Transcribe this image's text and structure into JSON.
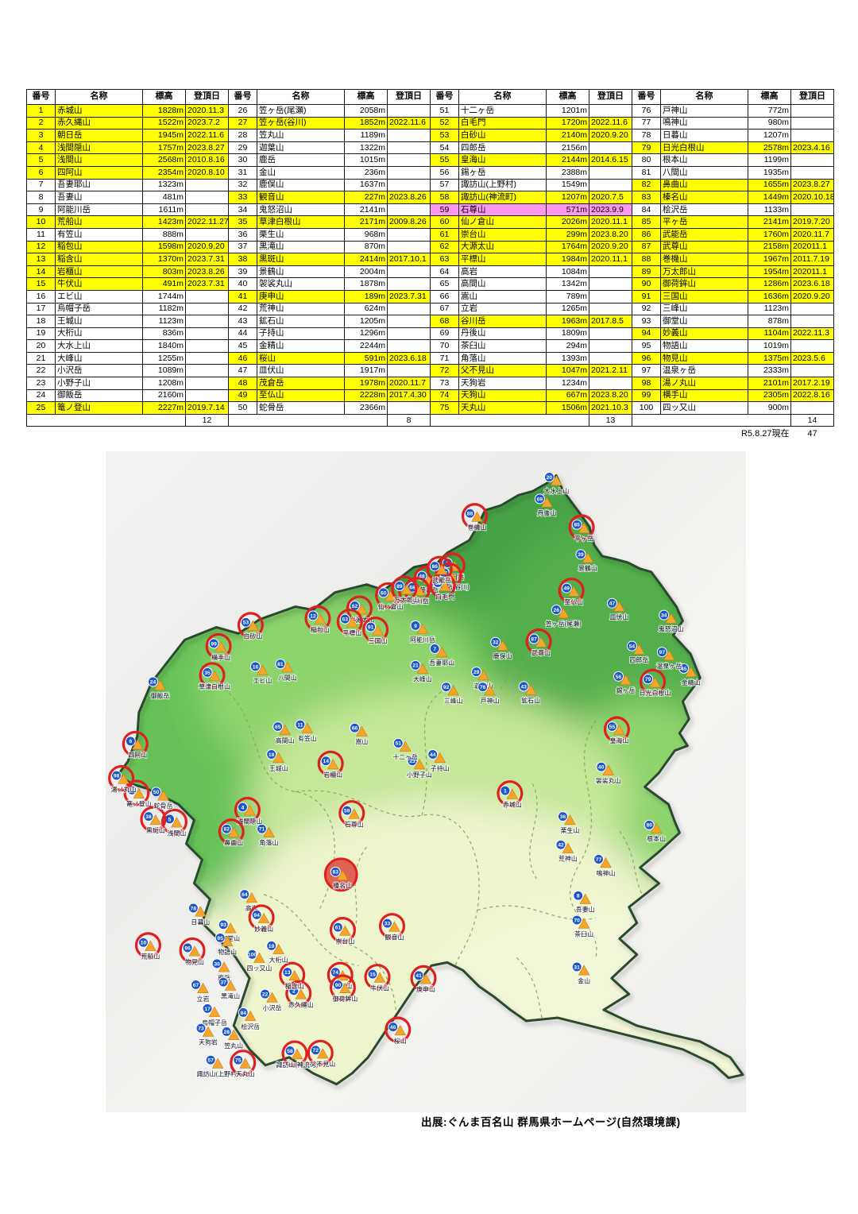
{
  "table": {
    "headers": [
      "番号",
      "名称",
      "標高",
      "登頂日"
    ],
    "groups": [
      {
        "rows": [
          {
            "n": "1",
            "name": "赤城山",
            "elev": "1828m",
            "date": "2020.11.3"
          },
          {
            "n": "2",
            "name": "赤久縄山",
            "elev": "1522m",
            "date": "2023.7.2"
          },
          {
            "n": "3",
            "name": "朝日岳",
            "elev": "1945m",
            "date": "2022.11.6"
          },
          {
            "n": "4",
            "name": "浅間隠山",
            "elev": "1757m",
            "date": "2023.8.27"
          },
          {
            "n": "5",
            "name": "浅間山",
            "elev": "2568m",
            "date": "2010.8.16"
          },
          {
            "n": "6",
            "name": "四阿山",
            "elev": "2354m",
            "date": "2020.8.10"
          },
          {
            "n": "7",
            "name": "吾妻耶山",
            "elev": "1323m",
            "date": ""
          },
          {
            "n": "8",
            "name": "吾妻山",
            "elev": "481m",
            "date": ""
          },
          {
            "n": "9",
            "name": "阿能川岳",
            "elev": "1611m",
            "date": ""
          },
          {
            "n": "10",
            "name": "荒船山",
            "elev": "1423m",
            "date": "2022.11.27"
          },
          {
            "n": "11",
            "name": "有笠山",
            "elev": "888m",
            "date": ""
          },
          {
            "n": "12",
            "name": "稲包山",
            "elev": "1598m",
            "date": "2020.9.20"
          },
          {
            "n": "13",
            "name": "稲含山",
            "elev": "1370m",
            "date": "2023.7.31"
          },
          {
            "n": "14",
            "name": "岩櫃山",
            "elev": "803m",
            "date": "2023.8.26"
          },
          {
            "n": "15",
            "name": "牛伏山",
            "elev": "491m",
            "date": "2023.7.31"
          },
          {
            "n": "16",
            "name": "エビ山",
            "elev": "1744m",
            "date": ""
          },
          {
            "n": "17",
            "name": "烏帽子岳",
            "elev": "1182m",
            "date": ""
          },
          {
            "n": "18",
            "name": "王城山",
            "elev": "1123m",
            "date": ""
          },
          {
            "n": "19",
            "name": "大桁山",
            "elev": "836m",
            "date": ""
          },
          {
            "n": "20",
            "name": "大水上山",
            "elev": "1840m",
            "date": ""
          },
          {
            "n": "21",
            "name": "大峰山",
            "elev": "1255m",
            "date": ""
          },
          {
            "n": "22",
            "name": "小沢岳",
            "elev": "1089m",
            "date": ""
          },
          {
            "n": "23",
            "name": "小野子山",
            "elev": "1208m",
            "date": ""
          },
          {
            "n": "24",
            "name": "御飯岳",
            "elev": "2160m",
            "date": ""
          },
          {
            "n": "25",
            "name": "篭ノ登山",
            "elev": "2227m",
            "date": "2019.7.14"
          }
        ],
        "subtotal": "12"
      },
      {
        "rows": [
          {
            "n": "26",
            "name": "笠ヶ岳(尾瀬)",
            "elev": "2058m",
            "date": ""
          },
          {
            "n": "27",
            "name": "笠ヶ岳(谷川)",
            "elev": "1852m",
            "date": "2022.11.6"
          },
          {
            "n": "28",
            "name": "笠丸山",
            "elev": "1189m",
            "date": ""
          },
          {
            "n": "29",
            "name": "迦葉山",
            "elev": "1322m",
            "date": ""
          },
          {
            "n": "30",
            "name": "鹿岳",
            "elev": "1015m",
            "date": ""
          },
          {
            "n": "31",
            "name": "金山",
            "elev": "236m",
            "date": ""
          },
          {
            "n": "32",
            "name": "鹿俣山",
            "elev": "1637m",
            "date": ""
          },
          {
            "n": "33",
            "name": "観音山",
            "elev": "227m",
            "date": "2023.8.26"
          },
          {
            "n": "34",
            "name": "鬼怒沼山",
            "elev": "2141m",
            "date": ""
          },
          {
            "n": "35",
            "name": "草津白根山",
            "elev": "2171m",
            "date": "2009.8.26"
          },
          {
            "n": "36",
            "name": "栗生山",
            "elev": "968m",
            "date": ""
          },
          {
            "n": "37",
            "name": "黒滝山",
            "elev": "870m",
            "date": ""
          },
          {
            "n": "38",
            "name": "黒斑山",
            "elev": "2414m",
            "date": "2017.10.1"
          },
          {
            "n": "39",
            "name": "景鶴山",
            "elev": "2004m",
            "date": ""
          },
          {
            "n": "40",
            "name": "袈裟丸山",
            "elev": "1878m",
            "date": ""
          },
          {
            "n": "41",
            "name": "庚申山",
            "elev": "189m",
            "date": "2023.7.31"
          },
          {
            "n": "42",
            "name": "荒神山",
            "elev": "624m",
            "date": ""
          },
          {
            "n": "43",
            "name": "鉱石山",
            "elev": "1205m",
            "date": ""
          },
          {
            "n": "44",
            "name": "子持山",
            "elev": "1296m",
            "date": ""
          },
          {
            "n": "45",
            "name": "金精山",
            "elev": "2244m",
            "date": ""
          },
          {
            "n": "46",
            "name": "桜山",
            "elev": "591m",
            "date": "2023.6.18"
          },
          {
            "n": "47",
            "name": "皿伏山",
            "elev": "1917m",
            "date": ""
          },
          {
            "n": "48",
            "name": "茂倉岳",
            "elev": "1978m",
            "date": "2020.11.7"
          },
          {
            "n": "49",
            "name": "至仏山",
            "elev": "2228m",
            "date": "2017.4.30"
          },
          {
            "n": "50",
            "name": "蛇骨岳",
            "elev": "2366m",
            "date": ""
          }
        ],
        "subtotal": "8"
      },
      {
        "rows": [
          {
            "n": "51",
            "name": "十二ヶ岳",
            "elev": "1201m",
            "date": ""
          },
          {
            "n": "52",
            "name": "白毛門",
            "elev": "1720m",
            "date": "2022.11.6"
          },
          {
            "n": "53",
            "name": "白砂山",
            "elev": "2140m",
            "date": "2020.9.20"
          },
          {
            "n": "54",
            "name": "四郎岳",
            "elev": "2156m",
            "date": ""
          },
          {
            "n": "55",
            "name": "皇海山",
            "elev": "2144m",
            "date": "2014.6.15"
          },
          {
            "n": "56",
            "name": "錫ヶ岳",
            "elev": "2388m",
            "date": ""
          },
          {
            "n": "57",
            "name": "諏訪山(上野村)",
            "elev": "1549m",
            "date": ""
          },
          {
            "n": "58",
            "name": "諏訪山(神流町)",
            "elev": "1207m",
            "date": "2020.7.5"
          },
          {
            "n": "59",
            "name": "石尊山",
            "elev": "571m",
            "date": "2023.9.9"
          },
          {
            "n": "60",
            "name": "仙ノ倉山",
            "elev": "2026m",
            "date": "2020.11.1"
          },
          {
            "n": "61",
            "name": "崇台山",
            "elev": "299m",
            "date": "2023.8.20"
          },
          {
            "n": "62",
            "name": "大源太山",
            "elev": "1764m",
            "date": "2020.9.20"
          },
          {
            "n": "63",
            "name": "平標山",
            "elev": "1984m",
            "date": "2020.11.1"
          },
          {
            "n": "64",
            "name": "高岩",
            "elev": "1084m",
            "date": ""
          },
          {
            "n": "65",
            "name": "高間山",
            "elev": "1342m",
            "date": ""
          },
          {
            "n": "66",
            "name": "嵩山",
            "elev": "789m",
            "date": ""
          },
          {
            "n": "67",
            "name": "立岩",
            "elev": "1265m",
            "date": ""
          },
          {
            "n": "68",
            "name": "谷川岳",
            "elev": "1963m",
            "date": "2017.8.5"
          },
          {
            "n": "69",
            "name": "丹後山",
            "elev": "1809m",
            "date": ""
          },
          {
            "n": "70",
            "name": "茶臼山",
            "elev": "294m",
            "date": ""
          },
          {
            "n": "71",
            "name": "角落山",
            "elev": "1393m",
            "date": ""
          },
          {
            "n": "72",
            "name": "父不見山",
            "elev": "1047m",
            "date": "2021.2.11"
          },
          {
            "n": "73",
            "name": "天狗岩",
            "elev": "1234m",
            "date": ""
          },
          {
            "n": "74",
            "name": "天狗山",
            "elev": "667m",
            "date": "2023.8.20"
          },
          {
            "n": "75",
            "name": "天丸山",
            "elev": "1506m",
            "date": "2021.10.3"
          }
        ],
        "subtotal": "13"
      },
      {
        "rows": [
          {
            "n": "76",
            "name": "戸神山",
            "elev": "772m",
            "date": ""
          },
          {
            "n": "77",
            "name": "鳴神山",
            "elev": "980m",
            "date": ""
          },
          {
            "n": "78",
            "name": "日暮山",
            "elev": "1207m",
            "date": ""
          },
          {
            "n": "79",
            "name": "日光白根山",
            "elev": "2578m",
            "date": "2023.4.16"
          },
          {
            "n": "80",
            "name": "根本山",
            "elev": "1199m",
            "date": ""
          },
          {
            "n": "81",
            "name": "八間山",
            "elev": "1935m",
            "date": ""
          },
          {
            "n": "82",
            "name": "鼻曲山",
            "elev": "1655m",
            "date": "2023.8.27"
          },
          {
            "n": "83",
            "name": "榛名山",
            "elev": "1449m",
            "date": "2020.10.18"
          },
          {
            "n": "84",
            "name": "桧沢岳",
            "elev": "1133m",
            "date": ""
          },
          {
            "n": "85",
            "name": "平ヶ岳",
            "elev": "2141m",
            "date": "2019.7.20"
          },
          {
            "n": "86",
            "name": "武能岳",
            "elev": "1760m",
            "date": "2020.11.7"
          },
          {
            "n": "87",
            "name": "武尊山",
            "elev": "2158m",
            "date": "202011.1"
          },
          {
            "n": "88",
            "name": "巻機山",
            "elev": "1967m",
            "date": "2011.7.19"
          },
          {
            "n": "89",
            "name": "万太郎山",
            "elev": "1954m",
            "date": "202011.1"
          },
          {
            "n": "90",
            "name": "御荷鉾山",
            "elev": "1286m",
            "date": "2023.6.18"
          },
          {
            "n": "91",
            "name": "三国山",
            "elev": "1636m",
            "date": "2020.9.20"
          },
          {
            "n": "92",
            "name": "三峰山",
            "elev": "1123m",
            "date": ""
          },
          {
            "n": "93",
            "name": "御堂山",
            "elev": "878m",
            "date": ""
          },
          {
            "n": "94",
            "name": "妙義山",
            "elev": "1104m",
            "date": "2022.11.3"
          },
          {
            "n": "95",
            "name": "物語山",
            "elev": "1019m",
            "date": ""
          },
          {
            "n": "96",
            "name": "物見山",
            "elev": "1375m",
            "date": "2023.5.6"
          },
          {
            "n": "97",
            "name": "温泉ヶ岳",
            "elev": "2333m",
            "date": ""
          },
          {
            "n": "98",
            "name": "湯ノ丸山",
            "elev": "2101m",
            "date": "2017.2.19"
          },
          {
            "n": "99",
            "name": "横手山",
            "elev": "2305m",
            "date": "2022.8.16"
          },
          {
            "n": "100",
            "name": "四ッ又山",
            "elev": "900m",
            "date": ""
          }
        ],
        "subtotal": "14"
      }
    ],
    "pink_row_number": "59",
    "footer": {
      "as_of": "R5.8.27現在",
      "total": "47"
    }
  },
  "map": {
    "caption": "出展:ぐんま百名山 群馬県ホームページ(自然環境課)",
    "special_marker_number": "83",
    "colors": {
      "highlight_yellow": "#ffff00",
      "highlight_pink": "#fb97ef",
      "climbed_ring": "#dd2020",
      "number_badge": "#1c56c8",
      "mountain_triangle": "#f5a62a",
      "special_fill": "#d84a3e",
      "special_label": "#8b1a1a"
    },
    "mountains_format": "[number, x_percent, y_percent]",
    "mountains": [
      [
        1,
        63.5,
        52.0
      ],
      [
        2,
        30.5,
        82.3
      ],
      [
        3,
        54.5,
        17.5
      ],
      [
        4,
        22.5,
        54.5
      ],
      [
        5,
        11.1,
        56.3
      ],
      [
        6,
        5.0,
        44.5
      ],
      [
        7,
        52.5,
        30.5
      ],
      [
        8,
        74.9,
        67.9
      ],
      [
        9,
        49.5,
        27.0
      ],
      [
        10,
        7.0,
        75.0
      ],
      [
        11,
        31.5,
        42.0
      ],
      [
        12,
        33.5,
        25.5
      ],
      [
        13,
        29.5,
        79.5
      ],
      [
        14,
        35.5,
        47.5
      ],
      [
        15,
        42.8,
        79.8
      ],
      [
        16,
        24.5,
        33.2
      ],
      [
        17,
        17.0,
        85.0
      ],
      [
        18,
        27.0,
        46.5
      ],
      [
        19,
        27.0,
        75.5
      ],
      [
        20,
        70.4,
        4.5
      ],
      [
        21,
        49.5,
        33.0
      ],
      [
        22,
        26.0,
        82.8
      ],
      [
        23,
        49.0,
        47.5
      ],
      [
        24,
        8.5,
        35.5
      ],
      [
        25,
        5.2,
        51.9
      ],
      [
        26,
        71.5,
        24.6
      ],
      [
        27,
        54.0,
        19.0
      ],
      [
        28,
        20.0,
        88.5
      ],
      [
        29,
        59.0,
        34.0
      ],
      [
        30,
        18.5,
        78.2
      ],
      [
        31,
        74.7,
        78.7
      ],
      [
        32,
        62.0,
        29.5
      ],
      [
        33,
        45.1,
        72.1
      ],
      [
        34,
        88.3,
        25.4
      ],
      [
        35,
        17.0,
        34.1
      ],
      [
        36,
        72.5,
        55.9
      ],
      [
        37,
        19.5,
        81.0
      ],
      [
        38,
        7.8,
        55.9
      ],
      [
        39,
        75.3,
        16.2
      ],
      [
        40,
        78.5,
        48.4
      ],
      [
        41,
        50.0,
        80.0
      ],
      [
        42,
        72.2,
        60.2
      ],
      [
        43,
        66.4,
        36.2
      ],
      [
        44,
        52.2,
        46.5
      ],
      [
        45,
        91.4,
        33.5
      ],
      [
        46,
        46.0,
        87.8
      ],
      [
        47,
        80.2,
        23.6
      ],
      [
        48,
        50.5,
        19.5
      ],
      [
        49,
        73.1,
        21.3
      ],
      [
        50,
        9.0,
        52.2
      ],
      [
        51,
        46.8,
        44.8
      ],
      [
        52,
        53.0,
        20.5
      ],
      [
        53,
        23.0,
        26.5
      ],
      [
        54,
        83.3,
        30.1
      ],
      [
        55,
        80.2,
        42.3
      ],
      [
        56,
        81.2,
        34.7
      ],
      [
        57,
        17.5,
        92.8
      ],
      [
        58,
        29.9,
        91.4
      ],
      [
        59,
        38.8,
        55.0
      ],
      [
        60,
        44.5,
        22.0
      ],
      [
        61,
        37.4,
        72.7
      ],
      [
        62,
        40.0,
        24.0
      ],
      [
        63,
        38.5,
        26.0
      ],
      [
        64,
        22.8,
        67.7
      ],
      [
        65,
        28.0,
        42.3
      ],
      [
        66,
        40.0,
        42.5
      ],
      [
        67,
        15.2,
        81.4
      ],
      [
        68,
        49.0,
        21.2
      ],
      [
        69,
        68.9,
        7.8
      ],
      [
        70,
        74.7,
        71.6
      ],
      [
        71,
        25.5,
        57.8
      ],
      [
        72,
        33.9,
        91.3
      ],
      [
        73,
        16.0,
        88.0
      ],
      [
        74,
        37.0,
        79.5
      ],
      [
        75,
        21.8,
        92.8
      ],
      [
        76,
        60.0,
        36.3
      ],
      [
        77,
        78.1,
        62.4
      ],
      [
        78,
        14.8,
        69.8
      ],
      [
        79,
        85.8,
        35.1
      ],
      [
        80,
        86.0,
        57.2
      ],
      [
        81,
        28.4,
        32.8
      ],
      [
        82,
        20.0,
        57.8
      ],
      [
        83,
        37.0,
        64.3
      ],
      [
        84,
        22.6,
        85.6
      ],
      [
        85,
        74.7,
        11.7
      ],
      [
        86,
        52.5,
        18.0
      ],
      [
        87,
        68.0,
        29.0
      ],
      [
        88,
        58.0,
        10.0
      ],
      [
        89,
        47.0,
        21.0
      ],
      [
        90,
        37.4,
        81.4
      ],
      [
        91,
        42.5,
        27.2
      ],
      [
        92,
        54.3,
        36.3
      ],
      [
        93,
        19.5,
        72.3
      ],
      [
        94,
        24.7,
        70.8
      ],
      [
        95,
        19.0,
        74.3
      ],
      [
        96,
        13.9,
        75.8
      ],
      [
        97,
        88.0,
        31.0
      ],
      [
        98,
        2.8,
        49.7
      ],
      [
        99,
        18.0,
        29.7
      ],
      [
        100,
        24.0,
        76.8
      ]
    ]
  }
}
